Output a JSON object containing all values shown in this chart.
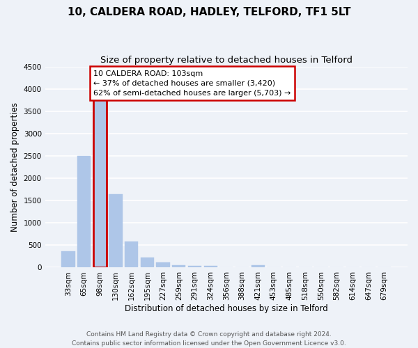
{
  "title": "10, CALDERA ROAD, HADLEY, TELFORD, TF1 5LT",
  "subtitle": "Size of property relative to detached houses in Telford",
  "xlabel": "Distribution of detached houses by size in Telford",
  "ylabel": "Number of detached properties",
  "categories": [
    "33sqm",
    "65sqm",
    "98sqm",
    "130sqm",
    "162sqm",
    "195sqm",
    "227sqm",
    "259sqm",
    "291sqm",
    "324sqm",
    "356sqm",
    "388sqm",
    "421sqm",
    "453sqm",
    "485sqm",
    "518sqm",
    "550sqm",
    "582sqm",
    "614sqm",
    "647sqm",
    "679sqm"
  ],
  "values": [
    370,
    2500,
    3750,
    1650,
    590,
    220,
    110,
    60,
    45,
    40,
    0,
    0,
    50,
    0,
    0,
    0,
    0,
    0,
    0,
    0,
    0
  ],
  "bar_color": "#aec6e8",
  "highlight_bar_index": 2,
  "highlight_bar_edge_color": "#cc0000",
  "annotation_text": "10 CALDERA ROAD: 103sqm\n← 37% of detached houses are smaller (3,420)\n62% of semi-detached houses are larger (5,703) →",
  "annotation_box_color": "white",
  "annotation_box_edge_color": "#cc0000",
  "ylim": [
    0,
    4500
  ],
  "yticks": [
    0,
    500,
    1000,
    1500,
    2000,
    2500,
    3000,
    3500,
    4000,
    4500
  ],
  "footer": "Contains HM Land Registry data © Crown copyright and database right 2024.\nContains public sector information licensed under the Open Government Licence v3.0.",
  "bg_color": "#eef2f8",
  "grid_color": "#ffffff",
  "title_fontsize": 11,
  "subtitle_fontsize": 9.5,
  "axis_label_fontsize": 8.5,
  "tick_fontsize": 7.5,
  "footer_fontsize": 6.5,
  "annotation_fontsize": 8
}
